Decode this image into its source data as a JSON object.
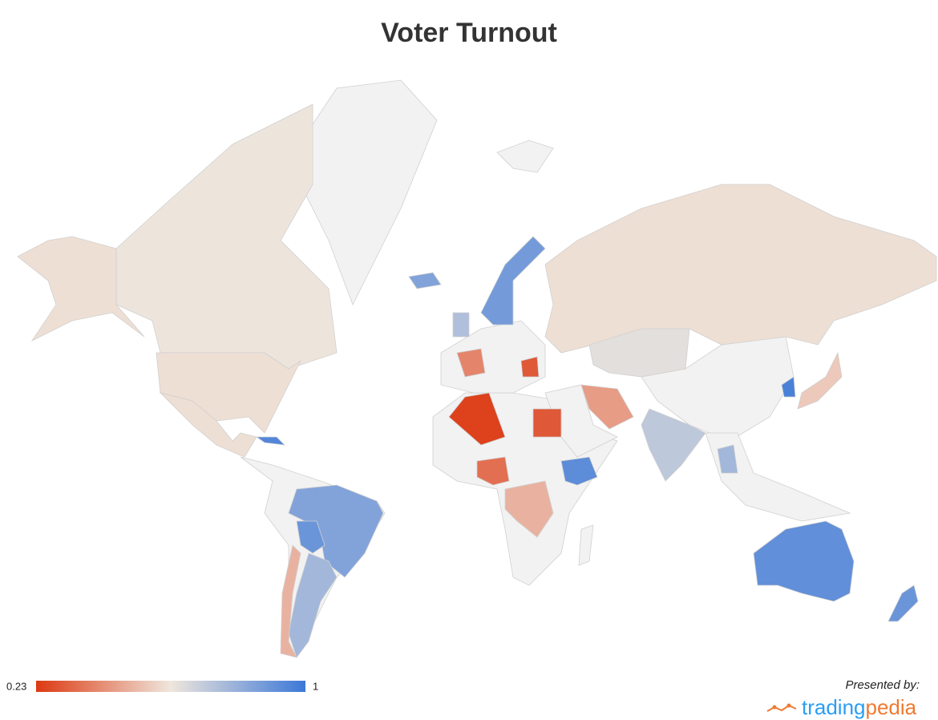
{
  "chart_data": {
    "type": "choropleth",
    "title": "Voter Turnout",
    "values": [
      0.62,
      0.6,
      0.6,
      0.6,
      0.85,
      0.9,
      0.78,
      0.5,
      0.25,
      0.3,
      0.35,
      0.5,
      0.93,
      0.4,
      0.88,
      0.75,
      0.85,
      0.3,
      0.6,
      0.64,
      0.72,
      0.45,
      0.55,
      0.97,
      0.78,
      0.92,
      0.9,
      0.95
    ],
    "colorbar": {
      "min": 0.23,
      "max": 1,
      "colors": [
        "#dc3912",
        "#efe6dc",
        "#3c78d8"
      ]
    },
    "no_data_color": "#f2f2f2"
  },
  "footer": {
    "presented_by": "Presented by:",
    "brand_a": "trading",
    "brand_b": "pedia"
  }
}
